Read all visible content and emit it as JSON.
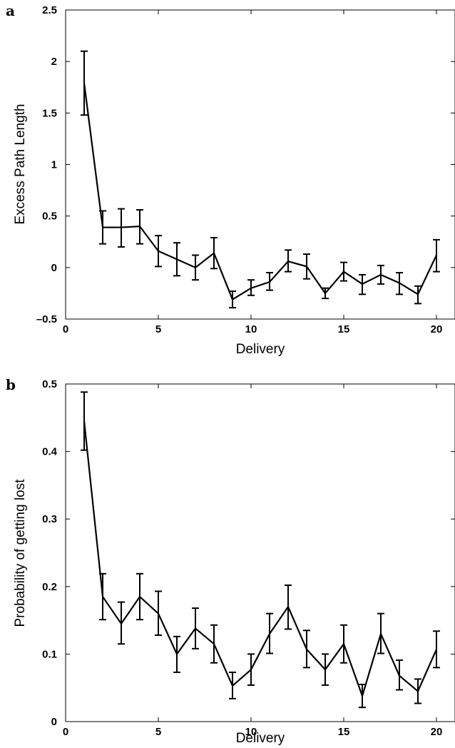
{
  "chart_data": [
    {
      "panel": "a",
      "type": "line",
      "xlabel": "Delivery",
      "ylabel": "Excess Path Length",
      "xlim": [
        0,
        21
      ],
      "ylim": [
        -0.5,
        2.5
      ],
      "xticks": [
        0,
        5,
        10,
        15,
        20
      ],
      "yticks": [
        -0.5,
        0,
        0.5,
        1,
        1.5,
        2,
        2.5
      ],
      "ytick_labels": [
        "–0.5",
        "0",
        "0.5",
        "1",
        "1.5",
        "2",
        "2.5"
      ],
      "grid": false,
      "x": [
        1,
        2,
        3,
        4,
        5,
        6,
        7,
        8,
        9,
        10,
        11,
        12,
        13,
        14,
        15,
        16,
        17,
        18,
        19,
        20
      ],
      "y": [
        1.79,
        0.39,
        0.39,
        0.4,
        0.16,
        0.08,
        0.0,
        0.14,
        -0.31,
        -0.2,
        -0.14,
        0.06,
        0.01,
        -0.25,
        -0.04,
        -0.16,
        -0.07,
        -0.15,
        -0.26,
        0.12
      ],
      "y_err_low": [
        1.48,
        0.23,
        0.2,
        0.23,
        0.01,
        -0.08,
        -0.12,
        -0.01,
        -0.39,
        -0.27,
        -0.22,
        -0.04,
        -0.11,
        -0.3,
        -0.13,
        -0.26,
        -0.16,
        -0.26,
        -0.35,
        -0.04
      ],
      "y_err_high": [
        2.1,
        0.55,
        0.57,
        0.56,
        0.31,
        0.24,
        0.12,
        0.29,
        -0.23,
        -0.12,
        -0.05,
        0.17,
        0.13,
        -0.2,
        0.05,
        -0.07,
        0.02,
        -0.05,
        -0.18,
        0.27
      ]
    },
    {
      "panel": "b",
      "type": "line",
      "xlabel": "Delivery",
      "ylabel": "Probability of getting lost",
      "xlim": [
        0,
        21
      ],
      "ylim": [
        0,
        0.5
      ],
      "xticks": [
        0,
        5,
        10,
        15,
        20
      ],
      "yticks": [
        0,
        0.1,
        0.2,
        0.3,
        0.4,
        0.5
      ],
      "ytick_labels": [
        "0",
        "0.1",
        "0.2",
        "0.3",
        "0.4",
        "0.5"
      ],
      "grid": false,
      "x": [
        1,
        2,
        3,
        4,
        5,
        6,
        7,
        8,
        9,
        10,
        11,
        12,
        13,
        14,
        15,
        16,
        17,
        18,
        19,
        20
      ],
      "y": [
        0.445,
        0.185,
        0.145,
        0.185,
        0.16,
        0.1,
        0.138,
        0.115,
        0.053,
        0.077,
        0.13,
        0.17,
        0.107,
        0.077,
        0.115,
        0.038,
        0.13,
        0.068,
        0.045,
        0.107
      ],
      "y_err_low": [
        0.402,
        0.151,
        0.115,
        0.151,
        0.128,
        0.073,
        0.108,
        0.087,
        0.034,
        0.054,
        0.101,
        0.137,
        0.08,
        0.054,
        0.087,
        0.021,
        0.101,
        0.047,
        0.027,
        0.08
      ],
      "y_err_high": [
        0.488,
        0.219,
        0.177,
        0.219,
        0.193,
        0.126,
        0.168,
        0.143,
        0.073,
        0.1,
        0.16,
        0.202,
        0.135,
        0.1,
        0.143,
        0.055,
        0.16,
        0.091,
        0.063,
        0.134
      ]
    }
  ]
}
